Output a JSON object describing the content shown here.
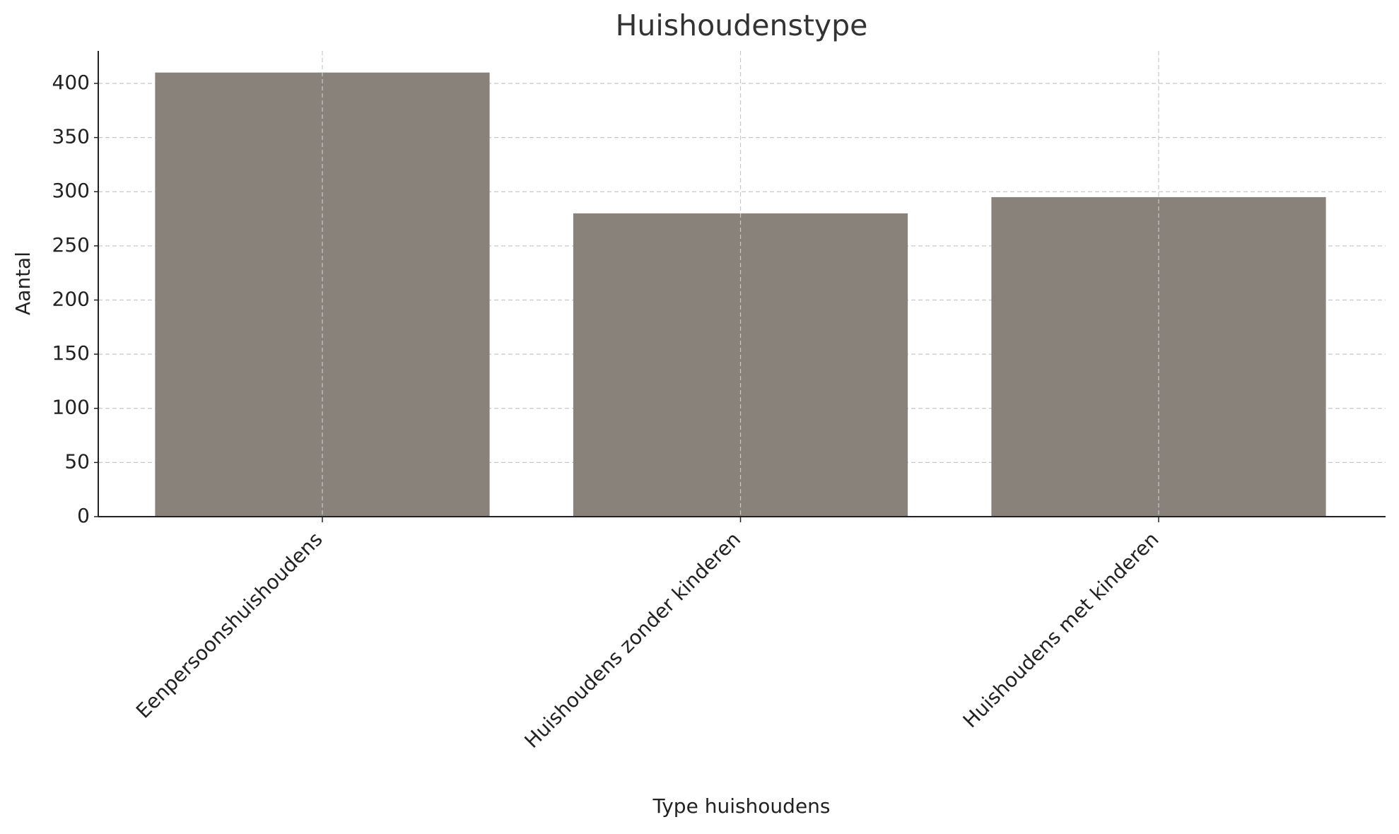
{
  "chart_data": {
    "type": "bar",
    "title": "Huishoudenstype",
    "x_label": "Type huishoudens",
    "y_label": "Aantal",
    "categories": [
      "Eenpersoonshuishoudens",
      "Huishoudens zonder kinderen",
      "Huishoudens met kinderen"
    ],
    "values": [
      410,
      280,
      295
    ],
    "color": "#89827b",
    "ylim": [
      0,
      430
    ],
    "yticks": [
      0,
      50,
      100,
      150,
      200,
      250,
      300,
      350,
      400
    ],
    "grid": true
  }
}
